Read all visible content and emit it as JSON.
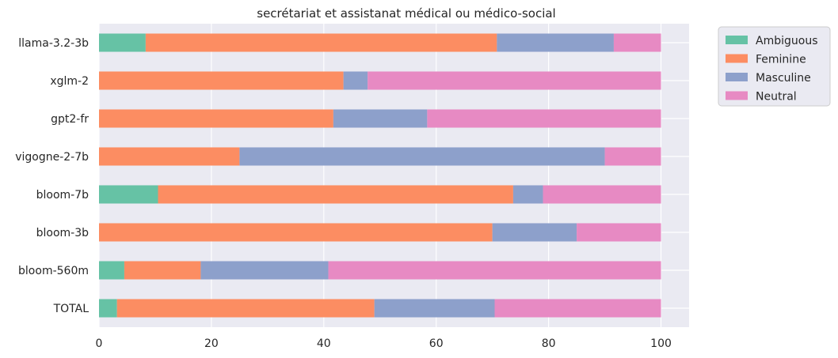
{
  "chart_data": {
    "type": "bar",
    "orientation": "horizontal",
    "stacked": true,
    "title": "secrétariat et assistanat médical ou médico-social",
    "xlabel": "",
    "ylabel": "",
    "xlim": [
      0,
      105
    ],
    "xticks": [
      0,
      20,
      40,
      60,
      80,
      100
    ],
    "grid": true,
    "legend_position": "upper-right-outside",
    "categories": [
      "llama-3.2-3b",
      "xglm-2",
      "gpt2-fr",
      "vigogne-2-7b",
      "bloom-7b",
      "bloom-3b",
      "bloom-560m",
      "TOTAL"
    ],
    "series": [
      {
        "name": "Ambiguous",
        "color": "#66c2a5",
        "values": [
          8.3,
          0,
          0,
          0,
          10.5,
          0,
          4.5,
          3.2
        ]
      },
      {
        "name": "Feminine",
        "color": "#fc8d62",
        "values": [
          62.5,
          43.5,
          41.7,
          25.0,
          63.2,
          70.0,
          13.6,
          45.8
        ]
      },
      {
        "name": "Masculine",
        "color": "#8da0cb",
        "values": [
          20.8,
          4.3,
          16.7,
          65.0,
          5.3,
          15.0,
          22.7,
          21.4
        ]
      },
      {
        "name": "Neutral",
        "color": "#e78ac3",
        "values": [
          8.4,
          52.2,
          41.6,
          10.0,
          21.0,
          15.0,
          59.2,
          29.6
        ]
      }
    ]
  }
}
